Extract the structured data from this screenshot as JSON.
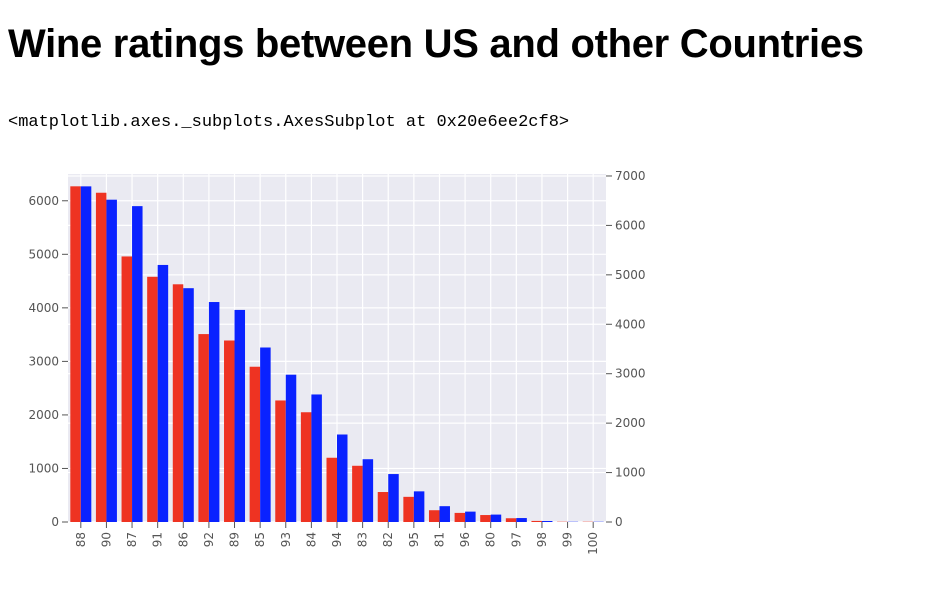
{
  "page": {
    "heading": "Wine ratings between US and other Countries",
    "output_repr": "<matplotlib.axes._subplots.AxesSubplot at 0x20e6ee2cf8>"
  },
  "chart_data": {
    "type": "bar",
    "title": "",
    "xlabel": "",
    "ylabel": "",
    "categories": [
      "88",
      "90",
      "87",
      "91",
      "86",
      "92",
      "89",
      "85",
      "93",
      "84",
      "94",
      "83",
      "82",
      "95",
      "81",
      "96",
      "80",
      "97",
      "98",
      "99",
      "100"
    ],
    "series": [
      {
        "color": "#ee3322",
        "axis": "left",
        "values": [
          6270,
          6150,
          4960,
          4580,
          4440,
          3510,
          3390,
          2900,
          2270,
          2050,
          1200,
          1050,
          560,
          470,
          220,
          170,
          130,
          70,
          20,
          5,
          5
        ]
      },
      {
        "color": "#0a22ff",
        "axis": "right",
        "values": [
          6790,
          6520,
          6390,
          5200,
          4730,
          4450,
          4290,
          3530,
          2980,
          2580,
          1770,
          1270,
          970,
          620,
          320,
          210,
          150,
          80,
          20,
          5,
          5
        ]
      }
    ],
    "left_axis": {
      "ylim": [
        0,
        6500
      ],
      "ticks": [
        0,
        1000,
        2000,
        3000,
        4000,
        5000,
        6000
      ]
    },
    "right_axis": {
      "ylim": [
        0,
        7040
      ],
      "ticks": [
        0,
        1000,
        2000,
        3000,
        4000,
        5000,
        6000,
        7000
      ]
    },
    "grid": true,
    "background": "#eaeaf2",
    "grid_color": "#ffffff"
  }
}
